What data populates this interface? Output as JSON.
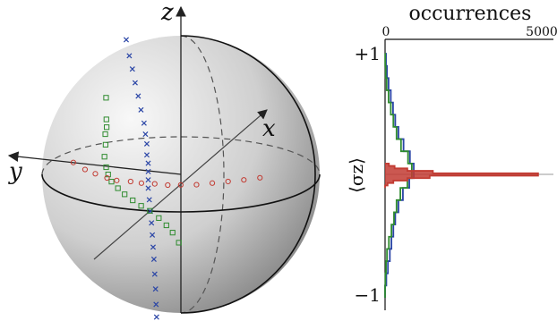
{
  "chart_data": [
    {
      "type": "scatter",
      "axes_labels": {
        "x": "x",
        "y": "y",
        "z": "z"
      },
      "colors": {
        "blue": "#2a45a6",
        "green": "#2e8b2e",
        "red": "#c23b32"
      },
      "series": [
        {
          "marker": "x",
          "color": "#2a45a6",
          "points": [
            [
              0.03,
              0.4,
              0.97
            ],
            [
              0.04,
              0.38,
              0.85
            ],
            [
              0.05,
              0.36,
              0.75
            ],
            [
              0.05,
              0.34,
              0.65
            ],
            [
              0.06,
              0.32,
              0.55
            ],
            [
              0.06,
              0.3,
              0.45
            ],
            [
              0.07,
              0.28,
              0.35
            ],
            [
              0.07,
              0.27,
              0.27
            ],
            [
              0.07,
              0.26,
              0.2
            ],
            [
              0.07,
              0.26,
              0.12
            ],
            [
              0.07,
              0.25,
              0.06
            ],
            [
              0.07,
              0.25,
              0.0
            ],
            [
              0.07,
              0.25,
              -0.06
            ],
            [
              0.07,
              0.25,
              -0.12
            ],
            [
              0.06,
              0.24,
              -0.2
            ],
            [
              0.05,
              0.23,
              -0.28
            ],
            [
              0.04,
              0.22,
              -0.36
            ],
            [
              0.02,
              0.21,
              -0.44
            ],
            [
              0.0,
              0.2,
              -0.52
            ],
            [
              -0.02,
              0.19,
              -0.6
            ],
            [
              -0.04,
              0.18,
              -0.7
            ],
            [
              -0.06,
              0.17,
              -0.8
            ],
            [
              -0.09,
              0.16,
              -0.9
            ],
            [
              -0.12,
              0.15,
              -0.98
            ]
          ]
        },
        {
          "marker": "square",
          "color": "#2e8b2e",
          "points": [
            [
              -0.09,
              0.52,
              0.6
            ],
            [
              -0.08,
              0.52,
              0.44
            ],
            [
              -0.07,
              0.52,
              0.38
            ],
            [
              -0.07,
              0.53,
              0.33
            ],
            [
              -0.06,
              0.53,
              0.25
            ],
            [
              -0.05,
              0.54,
              0.16
            ],
            [
              -0.04,
              0.53,
              0.08
            ],
            [
              -0.02,
              0.52,
              0.02
            ],
            [
              0.0,
              0.5,
              -0.04
            ],
            [
              0.03,
              0.46,
              -0.1
            ],
            [
              0.07,
              0.42,
              -0.16
            ],
            [
              0.11,
              0.37,
              -0.22
            ],
            [
              0.16,
              0.32,
              -0.28
            ],
            [
              0.22,
              0.27,
              -0.34
            ],
            [
              0.29,
              0.22,
              -0.42
            ],
            [
              0.36,
              0.18,
              -0.5
            ],
            [
              0.43,
              0.15,
              -0.58
            ],
            [
              0.5,
              0.12,
              -0.68
            ]
          ]
        },
        {
          "marker": "circle",
          "color": "#c23b32",
          "points": [
            [
              0.12,
              0.8,
              0.06
            ],
            [
              0.14,
              0.72,
              0.0
            ],
            [
              0.16,
              0.65,
              -0.04
            ],
            [
              0.18,
              0.57,
              -0.08
            ],
            [
              0.18,
              0.5,
              -0.1
            ],
            [
              0.18,
              0.4,
              -0.11
            ],
            [
              0.17,
              0.32,
              -0.12
            ],
            [
              0.15,
              0.22,
              -0.12
            ],
            [
              0.12,
              0.12,
              -0.12
            ],
            [
              0.09,
              0.02,
              -0.11
            ],
            [
              0.06,
              -0.1,
              -0.1
            ],
            [
              0.03,
              -0.22,
              -0.08
            ],
            [
              0.0,
              -0.34,
              -0.06
            ],
            [
              -0.03,
              -0.46,
              -0.04
            ],
            [
              -0.05,
              -0.58,
              -0.02
            ]
          ]
        }
      ]
    },
    {
      "type": "histogram",
      "orientation": "horizontal",
      "title": "occurrences",
      "ylabel": "⟨σz⟩",
      "xlim": [
        0,
        5000
      ],
      "xticks": [
        "0",
        "5000"
      ],
      "ylim": [
        -1,
        1
      ],
      "yticks": [
        "−1",
        "+1"
      ],
      "series": [
        {
          "color": "#2a45a6",
          "bins": [
            [
              -1.0,
              0
            ],
            [
              -0.9,
              40
            ],
            [
              -0.8,
              90
            ],
            [
              -0.7,
              150
            ],
            [
              -0.6,
              200
            ],
            [
              -0.5,
              260
            ],
            [
              -0.4,
              320
            ],
            [
              -0.3,
              420
            ],
            [
              -0.2,
              560
            ],
            [
              -0.1,
              760
            ],
            [
              -0.02,
              900
            ],
            [
              0.02,
              900
            ],
            [
              0.1,
              780
            ],
            [
              0.2,
              580
            ],
            [
              0.3,
              420
            ],
            [
              0.4,
              320
            ],
            [
              0.5,
              250
            ],
            [
              0.6,
              180
            ],
            [
              0.7,
              110
            ],
            [
              0.8,
              60
            ],
            [
              0.9,
              30
            ],
            [
              1.0,
              0
            ]
          ]
        },
        {
          "color": "#2e8b2e",
          "bins": [
            [
              -1.0,
              0
            ],
            [
              -0.9,
              10
            ],
            [
              -0.8,
              30
            ],
            [
              -0.7,
              60
            ],
            [
              -0.6,
              120
            ],
            [
              -0.5,
              200
            ],
            [
              -0.4,
              280
            ],
            [
              -0.3,
              360
            ],
            [
              -0.2,
              480
            ],
            [
              -0.1,
              700
            ],
            [
              -0.02,
              840
            ],
            [
              0.02,
              840
            ],
            [
              0.1,
              720
            ],
            [
              0.2,
              500
            ],
            [
              0.3,
              360
            ],
            [
              0.4,
              260
            ],
            [
              0.5,
              180
            ],
            [
              0.6,
              110
            ],
            [
              0.7,
              50
            ],
            [
              0.8,
              20
            ],
            [
              0.9,
              5
            ],
            [
              1.0,
              0
            ]
          ]
        },
        {
          "color": "#c23b32",
          "bins": [
            [
              -0.1,
              0
            ],
            [
              -0.08,
              80
            ],
            [
              -0.06,
              260
            ],
            [
              -0.04,
              700
            ],
            [
              -0.02,
              1400
            ],
            [
              0.0,
              4800
            ],
            [
              0.02,
              1500
            ],
            [
              0.04,
              700
            ],
            [
              0.06,
              300
            ],
            [
              0.08,
              120
            ],
            [
              0.1,
              0
            ]
          ]
        }
      ]
    }
  ]
}
